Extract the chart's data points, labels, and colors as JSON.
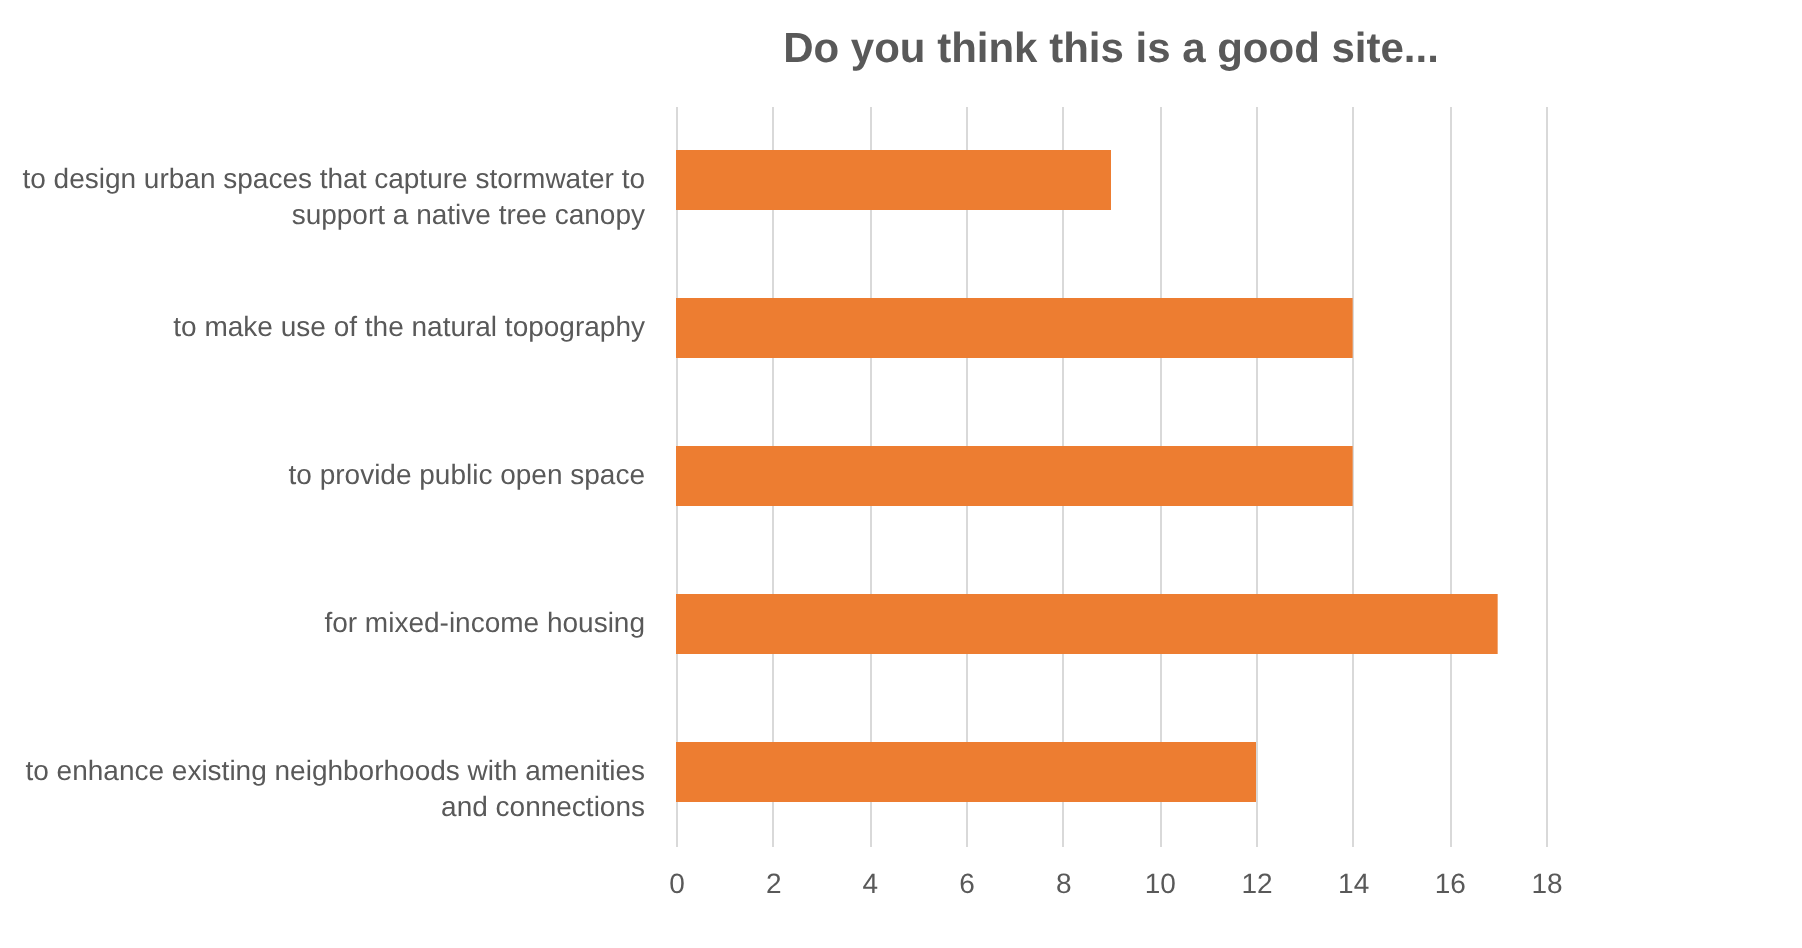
{
  "chart_data": {
    "type": "bar",
    "orientation": "horizontal",
    "title": "Do you think this is a good site...",
    "categories": [
      "to design urban spaces that capture stormwater to support a native tree canopy",
      "to make use of the natural topography",
      "to provide public open space",
      "for mixed-income housing",
      "to enhance existing neighborhoods with amenities and connections"
    ],
    "values": [
      9,
      14,
      14,
      17,
      12
    ],
    "color": "#ed7d31",
    "xlim": [
      0,
      18
    ],
    "xticks": [
      0,
      2,
      4,
      6,
      8,
      10,
      12,
      14,
      16,
      18
    ],
    "grid": "x"
  }
}
